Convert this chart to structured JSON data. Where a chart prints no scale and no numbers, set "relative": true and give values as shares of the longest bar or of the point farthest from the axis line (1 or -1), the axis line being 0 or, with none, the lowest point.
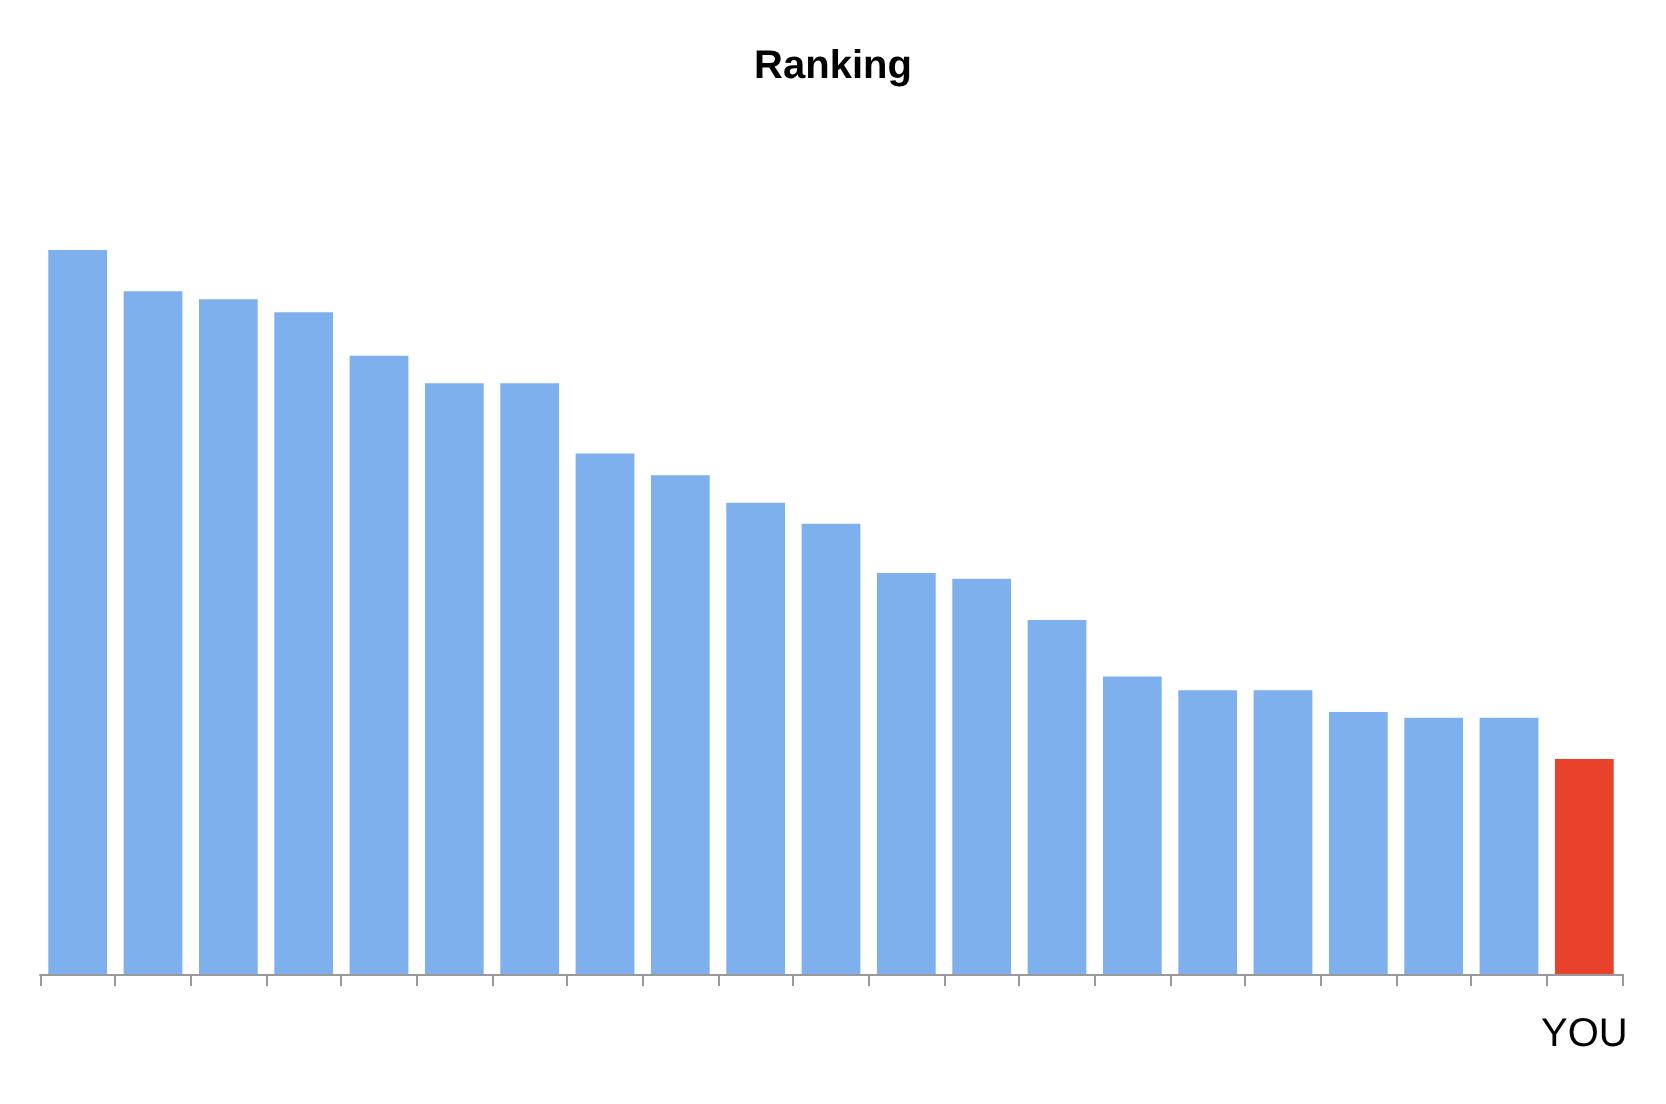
{
  "chart_data": {
    "type": "bar",
    "title": "Ranking",
    "relative": true,
    "categories": [
      null,
      null,
      null,
      null,
      null,
      null,
      null,
      null,
      null,
      null,
      null,
      null,
      null,
      null,
      null,
      null,
      null,
      null,
      null,
      null,
      "YOU"
    ],
    "values": [
      1,
      0.943,
      0.932,
      0.914,
      0.854,
      0.816,
      0.816,
      0.719,
      0.689,
      0.651,
      0.622,
      0.554,
      0.546,
      0.489,
      0.411,
      0.392,
      0.392,
      0.362,
      0.354,
      0.354,
      0.297
    ],
    "colors": [
      "#7fb0ee",
      "#7fb0ee",
      "#7fb0ee",
      "#7fb0ee",
      "#7fb0ee",
      "#7fb0ee",
      "#7fb0ee",
      "#7fb0ee",
      "#7fb0ee",
      "#7fb0ee",
      "#7fb0ee",
      "#7fb0ee",
      "#7fb0ee",
      "#7fb0ee",
      "#7fb0ee",
      "#7fb0ee",
      "#7fb0ee",
      "#7fb0ee",
      "#7fb0ee",
      "#7fb0ee",
      "#e8412c"
    ]
  }
}
